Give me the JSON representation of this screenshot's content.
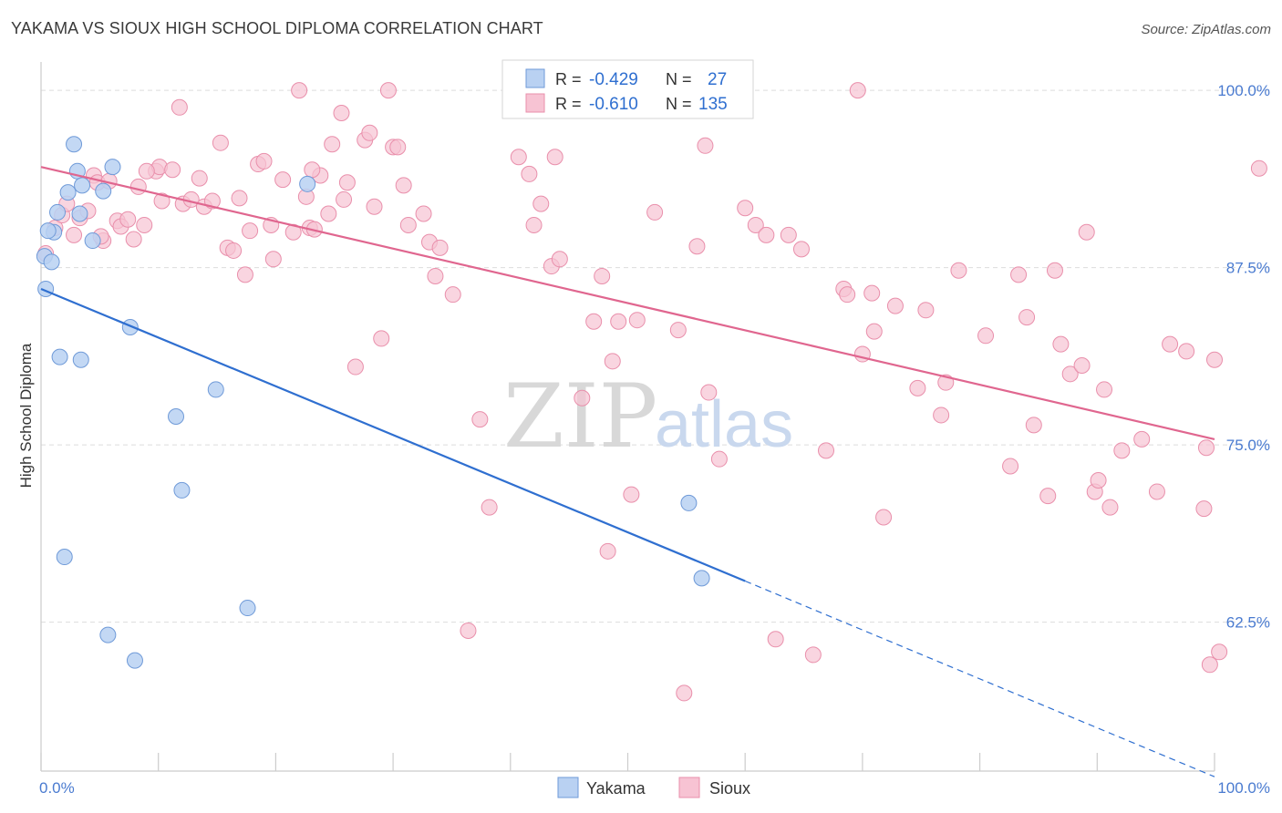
{
  "title": "YAKAMA VS SIOUX HIGH SCHOOL DIPLOMA CORRELATION CHART",
  "source": "Source: ZipAtlas.com",
  "watermark": {
    "zip": "ZIP",
    "atlas": "atlas"
  },
  "colors": {
    "yakama_fill": "#b9d1f2",
    "yakama_stroke": "#6f9ad8",
    "yakama_line": "#2f6fd0",
    "sioux_fill": "#f7c3d3",
    "sioux_stroke": "#e98fab",
    "sioux_line": "#e0668f",
    "grid": "#dddddd",
    "tick_label": "#4a7bd0"
  },
  "legend_box": {
    "rows": [
      {
        "r_label": "R =",
        "r_value": "-0.429",
        "n_label": "N =",
        "n_value": "27",
        "series": "yakama"
      },
      {
        "r_label": "R =",
        "r_value": "-0.610",
        "n_label": "N =",
        "n_value": "135",
        "series": "sioux"
      }
    ]
  },
  "bottom_legend": [
    {
      "label": "Yakama",
      "series": "yakama"
    },
    {
      "label": "Sioux",
      "series": "sioux"
    }
  ],
  "chart_data": {
    "type": "scatter",
    "title": "YAKAMA VS SIOUX HIGH SCHOOL DIPLOMA CORRELATION CHART",
    "xlabel": "",
    "ylabel": "High School Diploma",
    "xlim": [
      0,
      100
    ],
    "ylim": [
      52,
      102
    ],
    "x_tick_labels": [
      {
        "value": 0,
        "label": "0.0%"
      },
      {
        "value": 100,
        "label": "100.0%"
      }
    ],
    "y_tick_labels": [
      {
        "value": 100,
        "label": "100.0%"
      },
      {
        "value": 87.5,
        "label": "87.5%"
      },
      {
        "value": 75,
        "label": "75.0%"
      },
      {
        "value": 62.5,
        "label": "62.5%"
      }
    ],
    "series": [
      {
        "name": "Yakama",
        "R": -0.429,
        "N": 27,
        "trend": {
          "x0": 0,
          "y0": 86.0,
          "x1": 60,
          "y1": 65.4,
          "x_end_dashed": 100,
          "y_end_dashed": 51.6
        },
        "points": [
          [
            0.3,
            88.3
          ],
          [
            0.9,
            87.9
          ],
          [
            0.4,
            86.0
          ],
          [
            1.1,
            90.0
          ],
          [
            1.4,
            91.4
          ],
          [
            2.3,
            92.8
          ],
          [
            2.8,
            96.2
          ],
          [
            3.1,
            94.3
          ],
          [
            3.3,
            91.3
          ],
          [
            3.5,
            93.3
          ],
          [
            4.4,
            89.4
          ],
          [
            5.3,
            92.9
          ],
          [
            6.1,
            94.6
          ],
          [
            7.6,
            83.3
          ],
          [
            1.6,
            81.2
          ],
          [
            3.4,
            81.0
          ],
          [
            14.9,
            78.9
          ],
          [
            11.5,
            77.0
          ],
          [
            12.0,
            71.8
          ],
          [
            2.0,
            67.1
          ],
          [
            17.6,
            63.5
          ],
          [
            5.7,
            61.6
          ],
          [
            8.0,
            59.8
          ],
          [
            22.7,
            93.4
          ],
          [
            55.2,
            70.9
          ],
          [
            56.3,
            65.6
          ],
          [
            0.6,
            90.1
          ]
        ]
      },
      {
        "name": "Sioux",
        "R": -0.61,
        "N": 135,
        "trend": {
          "x0": 0,
          "y0": 94.6,
          "x1": 100,
          "y1": 75.4
        },
        "points": [
          [
            0.4,
            88.5
          ],
          [
            1.2,
            90.3
          ],
          [
            1.8,
            91.2
          ],
          [
            2.2,
            92.0
          ],
          [
            2.8,
            89.8
          ],
          [
            3.3,
            91.0
          ],
          [
            4.0,
            91.5
          ],
          [
            4.5,
            94.0
          ],
          [
            4.8,
            93.5
          ],
          [
            5.3,
            89.4
          ],
          [
            5.8,
            93.6
          ],
          [
            6.5,
            90.8
          ],
          [
            6.8,
            90.4
          ],
          [
            7.4,
            90.9
          ],
          [
            7.9,
            89.5
          ],
          [
            8.3,
            93.2
          ],
          [
            8.8,
            90.5
          ],
          [
            9.8,
            94.3
          ],
          [
            10.1,
            94.6
          ],
          [
            10.3,
            92.2
          ],
          [
            11.2,
            94.4
          ],
          [
            11.8,
            98.8
          ],
          [
            12.1,
            92.0
          ],
          [
            12.8,
            92.3
          ],
          [
            13.5,
            93.8
          ],
          [
            13.9,
            91.8
          ],
          [
            14.6,
            92.2
          ],
          [
            15.3,
            96.3
          ],
          [
            15.9,
            88.9
          ],
          [
            16.4,
            88.7
          ],
          [
            16.9,
            92.4
          ],
          [
            17.4,
            87.0
          ],
          [
            17.8,
            90.1
          ],
          [
            18.5,
            94.8
          ],
          [
            19.0,
            95.0
          ],
          [
            19.6,
            90.5
          ],
          [
            19.8,
            88.1
          ],
          [
            20.6,
            93.7
          ],
          [
            21.5,
            90.0
          ],
          [
            22.0,
            100.0
          ],
          [
            22.6,
            92.5
          ],
          [
            22.9,
            90.3
          ],
          [
            23.3,
            90.2
          ],
          [
            23.8,
            94.0
          ],
          [
            24.8,
            96.2
          ],
          [
            25.6,
            98.4
          ],
          [
            26.1,
            93.5
          ],
          [
            25.8,
            92.3
          ],
          [
            27.6,
            96.5
          ],
          [
            28.0,
            97.0
          ],
          [
            29.0,
            82.5
          ],
          [
            29.6,
            100.0
          ],
          [
            30.0,
            96.0
          ],
          [
            30.4,
            96.0
          ],
          [
            30.9,
            93.3
          ],
          [
            31.3,
            90.5
          ],
          [
            32.6,
            91.3
          ],
          [
            33.1,
            89.3
          ],
          [
            34.0,
            88.9
          ],
          [
            35.1,
            85.6
          ],
          [
            36.4,
            61.9
          ],
          [
            37.4,
            76.8
          ],
          [
            38.2,
            70.6
          ],
          [
            40.7,
            95.3
          ],
          [
            41.6,
            94.1
          ],
          [
            42.0,
            90.5
          ],
          [
            42.6,
            92.0
          ],
          [
            43.5,
            87.6
          ],
          [
            43.8,
            95.3
          ],
          [
            44.2,
            88.1
          ],
          [
            46.1,
            78.3
          ],
          [
            47.1,
            83.7
          ],
          [
            47.8,
            86.9
          ],
          [
            48.3,
            67.5
          ],
          [
            48.7,
            80.9
          ],
          [
            49.2,
            83.7
          ],
          [
            50.3,
            71.5
          ],
          [
            50.8,
            83.8
          ],
          [
            52.3,
            91.4
          ],
          [
            54.3,
            83.1
          ],
          [
            54.8,
            57.5
          ],
          [
            55.9,
            89.0
          ],
          [
            56.6,
            96.1
          ],
          [
            56.9,
            78.7
          ],
          [
            57.8,
            74.0
          ],
          [
            60.0,
            91.7
          ],
          [
            60.9,
            90.5
          ],
          [
            61.8,
            89.8
          ],
          [
            62.6,
            61.3
          ],
          [
            63.7,
            89.8
          ],
          [
            64.8,
            88.8
          ],
          [
            65.8,
            60.2
          ],
          [
            66.9,
            74.6
          ],
          [
            68.4,
            86.0
          ],
          [
            68.7,
            85.6
          ],
          [
            69.6,
            100.0
          ],
          [
            70.0,
            81.4
          ],
          [
            70.8,
            85.7
          ],
          [
            71.0,
            83.0
          ],
          [
            71.8,
            69.9
          ],
          [
            72.8,
            84.8
          ],
          [
            74.7,
            79.0
          ],
          [
            75.4,
            84.5
          ],
          [
            76.7,
            77.1
          ],
          [
            77.1,
            79.4
          ],
          [
            78.2,
            87.3
          ],
          [
            80.5,
            82.7
          ],
          [
            82.6,
            73.5
          ],
          [
            83.3,
            87.0
          ],
          [
            84.0,
            84.0
          ],
          [
            84.6,
            76.4
          ],
          [
            85.8,
            71.4
          ],
          [
            86.4,
            87.3
          ],
          [
            86.9,
            82.1
          ],
          [
            87.7,
            80.0
          ],
          [
            88.7,
            80.6
          ],
          [
            89.1,
            90.0
          ],
          [
            89.8,
            71.7
          ],
          [
            90.1,
            72.5
          ],
          [
            90.6,
            78.9
          ],
          [
            91.1,
            70.6
          ],
          [
            92.1,
            74.6
          ],
          [
            93.8,
            75.4
          ],
          [
            95.1,
            71.7
          ],
          [
            96.2,
            82.1
          ],
          [
            97.6,
            81.6
          ],
          [
            99.1,
            70.5
          ],
          [
            99.3,
            74.8
          ],
          [
            99.6,
            59.5
          ],
          [
            100.0,
            81.0
          ],
          [
            100.4,
            60.4
          ],
          [
            103.8,
            94.5
          ],
          [
            23.1,
            94.4
          ],
          [
            9.0,
            94.3
          ],
          [
            5.1,
            89.7
          ],
          [
            24.5,
            91.3
          ],
          [
            26.8,
            80.5
          ],
          [
            28.4,
            91.8
          ],
          [
            33.6,
            86.9
          ]
        ]
      }
    ]
  }
}
